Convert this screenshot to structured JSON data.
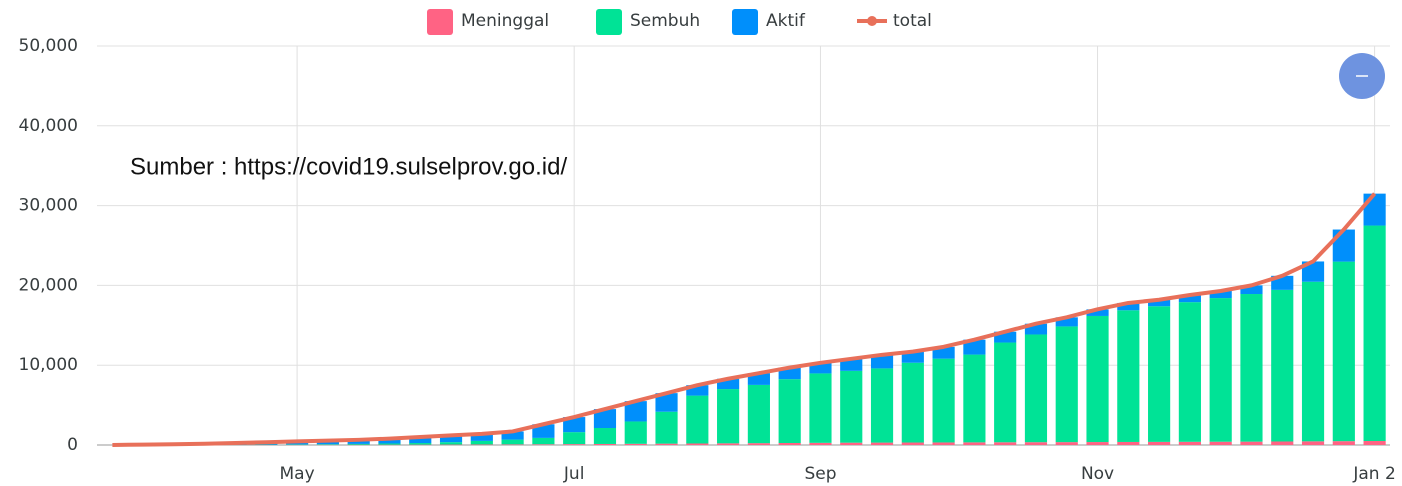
{
  "chart_data": {
    "type": "bar",
    "annotation": "Sumber : https://covid19.sulselprov.go.id/",
    "categories": [
      null,
      null,
      null,
      null,
      null,
      null,
      "May",
      null,
      null,
      null,
      null,
      null,
      null,
      null,
      null,
      "Jul",
      null,
      null,
      null,
      null,
      null,
      null,
      null,
      "Sep",
      null,
      null,
      null,
      null,
      null,
      null,
      null,
      null,
      "Nov",
      null,
      null,
      null,
      null,
      null,
      null,
      null,
      null,
      "Jan 2"
    ],
    "series": [
      {
        "name": "Meninggal",
        "type": "bar",
        "color": "#ff6384",
        "values": [
          0,
          2,
          5,
          10,
          15,
          20,
          25,
          30,
          35,
          40,
          45,
          55,
          65,
          75,
          90,
          110,
          130,
          150,
          170,
          190,
          210,
          230,
          250,
          270,
          290,
          300,
          310,
          320,
          330,
          340,
          350,
          360,
          370,
          380,
          390,
          400,
          410,
          420,
          440,
          460,
          480,
          500
        ]
      },
      {
        "name": "Sembuh",
        "type": "bar",
        "color": "#00e396",
        "values": [
          0,
          0,
          0,
          10,
          20,
          30,
          50,
          70,
          100,
          150,
          200,
          300,
          450,
          600,
          800,
          1500,
          2000,
          2800,
          4000,
          6000,
          6800,
          7300,
          8000,
          8700,
          9000,
          9300,
          10000,
          10500,
          11000,
          12500,
          13500,
          14500,
          15800,
          16500,
          17000,
          17500,
          18000,
          18500,
          19000,
          20000,
          22500,
          27000
        ]
      },
      {
        "name": "Aktif",
        "type": "bar",
        "color": "#008ffb",
        "values": [
          0,
          48,
          95,
          130,
          215,
          300,
          375,
          450,
          515,
          610,
          755,
          845,
          885,
          1025,
          1710,
          1890,
          2370,
          2550,
          2330,
          1310,
          1290,
          1470,
          1450,
          1330,
          1510,
          1700,
          1390,
          1480,
          1870,
          1360,
          1350,
          1140,
          830,
          920,
          810,
          900,
          890,
          1080,
          1760,
          2540,
          4020,
          4000
        ]
      },
      {
        "name": "total",
        "type": "line",
        "color": "#e8705a",
        "values": [
          0,
          50,
          100,
          150,
          250,
          350,
          450,
          550,
          650,
          800,
          1000,
          1200,
          1400,
          1700,
          2600,
          3500,
          4500,
          5500,
          6500,
          7500,
          8300,
          9000,
          9700,
          10300,
          10800,
          11300,
          11700,
          12300,
          13200,
          14200,
          15200,
          16000,
          17000,
          17800,
          18200,
          18800,
          19300,
          20000,
          21200,
          23000,
          27000,
          31500
        ]
      }
    ],
    "ylim": [
      0,
      50000
    ],
    "yticks": [
      0,
      {
        "value": 10000,
        "label": "10,000"
      },
      {
        "value": 20000,
        "label": "20,000"
      },
      {
        "value": 30000,
        "label": "30,000"
      },
      {
        "value": 40000,
        "label": "40,000"
      },
      {
        "value": 50000,
        "label": "50,000"
      }
    ],
    "grid": true,
    "legend": "top"
  }
}
